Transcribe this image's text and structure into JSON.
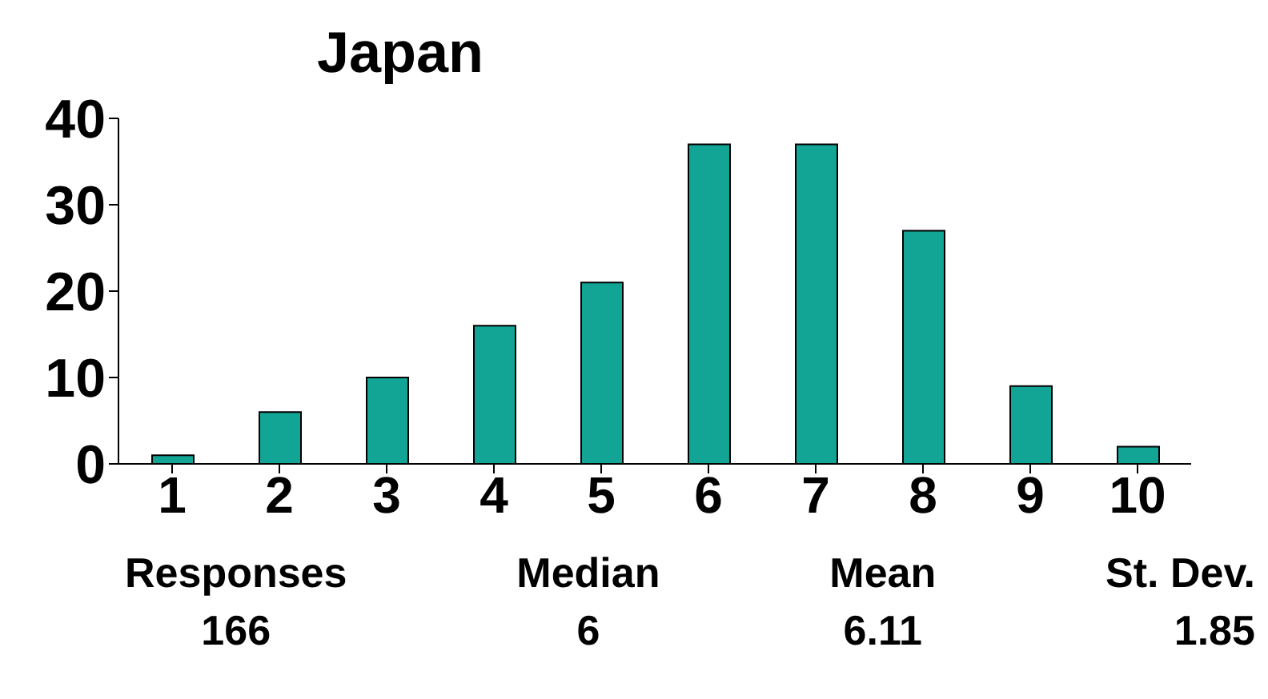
{
  "chart_data": {
    "type": "bar",
    "title": "Japan",
    "categories": [
      "1",
      "2",
      "3",
      "4",
      "5",
      "6",
      "7",
      "8",
      "9",
      "10"
    ],
    "values": [
      1,
      6,
      10,
      16,
      21,
      37,
      37,
      27,
      9,
      2
    ],
    "color": "#12a596",
    "ylim": [
      0,
      40
    ],
    "yticks": [
      0,
      10,
      20,
      30,
      40
    ],
    "grid": false,
    "annotations": [
      "Responses",
      "166",
      "Median",
      "6",
      "Mean",
      "6.11",
      "St. Dev.",
      "1.85"
    ]
  }
}
